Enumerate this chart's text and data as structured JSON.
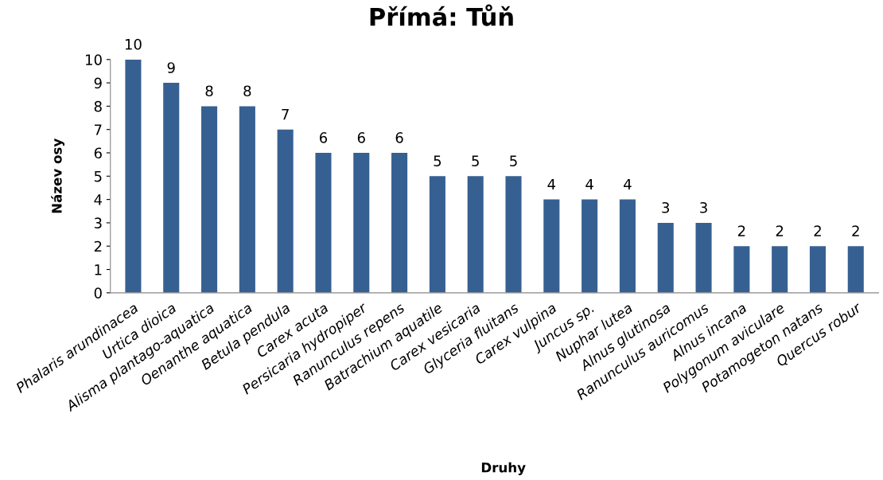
{
  "chart_data": {
    "type": "bar",
    "title": "Přímá: Tůň",
    "xlabel": "Druhy",
    "ylabel": "Název osy",
    "categories": [
      "Phalaris arundinacea",
      "Urtica dioica",
      "Alisma plantago-aquatica",
      "Oenanthe aquatica",
      "Betula pendula",
      "Carex acuta",
      "Persicaria hydropiper",
      "Ranunculus repens",
      "Batrachium aquatile",
      "Carex vesicaria",
      "Glyceria fluitans",
      "Carex vulpina",
      "Juncus sp.",
      "Nuphar lutea",
      "Alnus glutinosa",
      "Ranunculus auricomus",
      "Alnus incana",
      "Polygonum aviculare",
      "Potamogeton natans",
      "Quercus robur"
    ],
    "values": [
      10,
      9,
      8,
      8,
      7,
      6,
      6,
      6,
      5,
      5,
      5,
      4,
      4,
      4,
      3,
      3,
      2,
      2,
      2,
      2
    ],
    "color": "#376092",
    "ylim": [
      0,
      10
    ],
    "yticks": [
      0,
      1,
      2,
      3,
      4,
      5,
      6,
      7,
      8,
      9,
      10
    ],
    "data_labels": true,
    "grid": false,
    "legend": false
  }
}
